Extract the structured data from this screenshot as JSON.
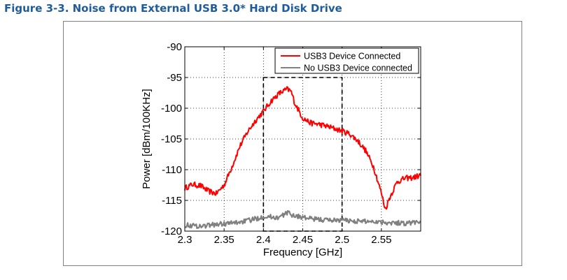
{
  "figure": {
    "caption": "Figure 3-3. Noise from External USB 3.0* Hard Disk Drive"
  },
  "chart_data": {
    "type": "line",
    "title": "",
    "xlabel": "Frequency [GHz]",
    "ylabel": "Power [dBm/100KHz]",
    "xlim": [
      2.3,
      2.6
    ],
    "ylim": [
      -120,
      -90
    ],
    "xticks": [
      "2.3",
      "2.35",
      "2.4",
      "2.45",
      "2.5",
      "2.55"
    ],
    "xtick_values": [
      2.3,
      2.35,
      2.4,
      2.45,
      2.5,
      2.55
    ],
    "yticks": [
      "-90",
      "-95",
      "-100",
      "-105",
      "-110",
      "-115",
      "-120"
    ],
    "ytick_values": [
      -90,
      -95,
      -100,
      -105,
      -110,
      -115,
      -120
    ],
    "grid": true,
    "legend_position": "top-right",
    "highlight_box": {
      "x": [
        2.4,
        2.5
      ],
      "y": [
        -120,
        -95
      ]
    },
    "series": [
      {
        "name": "USB3 Device Connected",
        "color": "#ff0000",
        "x": [
          2.3,
          2.31,
          2.32,
          2.33,
          2.34,
          2.35,
          2.36,
          2.37,
          2.38,
          2.39,
          2.4,
          2.41,
          2.42,
          2.43,
          2.435,
          2.44,
          2.45,
          2.46,
          2.47,
          2.48,
          2.49,
          2.5,
          2.51,
          2.52,
          2.53,
          2.54,
          2.55,
          2.555,
          2.56,
          2.57,
          2.58,
          2.59,
          2.6
        ],
        "y": [
          -113,
          -112.4,
          -112.6,
          -113.5,
          -113.9,
          -112.5,
          -109.5,
          -106.2,
          -103.8,
          -102.0,
          -100.5,
          -98.8,
          -97.6,
          -96.9,
          -97.2,
          -99.2,
          -101.6,
          -102.4,
          -102.6,
          -102.9,
          -103.3,
          -103.7,
          -104.2,
          -105.3,
          -106.9,
          -109.5,
          -113.8,
          -116.5,
          -114.7,
          -112.0,
          -111.4,
          -111.3,
          -110.9
        ]
      },
      {
        "name": "No USB3 Device connected",
        "color": "#808080",
        "x": [
          2.3,
          2.32,
          2.34,
          2.36,
          2.38,
          2.39,
          2.4,
          2.42,
          2.43,
          2.44,
          2.46,
          2.48,
          2.5,
          2.52,
          2.54,
          2.56,
          2.58,
          2.6
        ],
        "y": [
          -119.0,
          -119.2,
          -118.9,
          -118.7,
          -118.3,
          -118.0,
          -117.6,
          -117.8,
          -117.0,
          -117.5,
          -118.0,
          -118.2,
          -118.2,
          -118.4,
          -118.4,
          -118.6,
          -118.7,
          -118.5
        ]
      }
    ]
  }
}
